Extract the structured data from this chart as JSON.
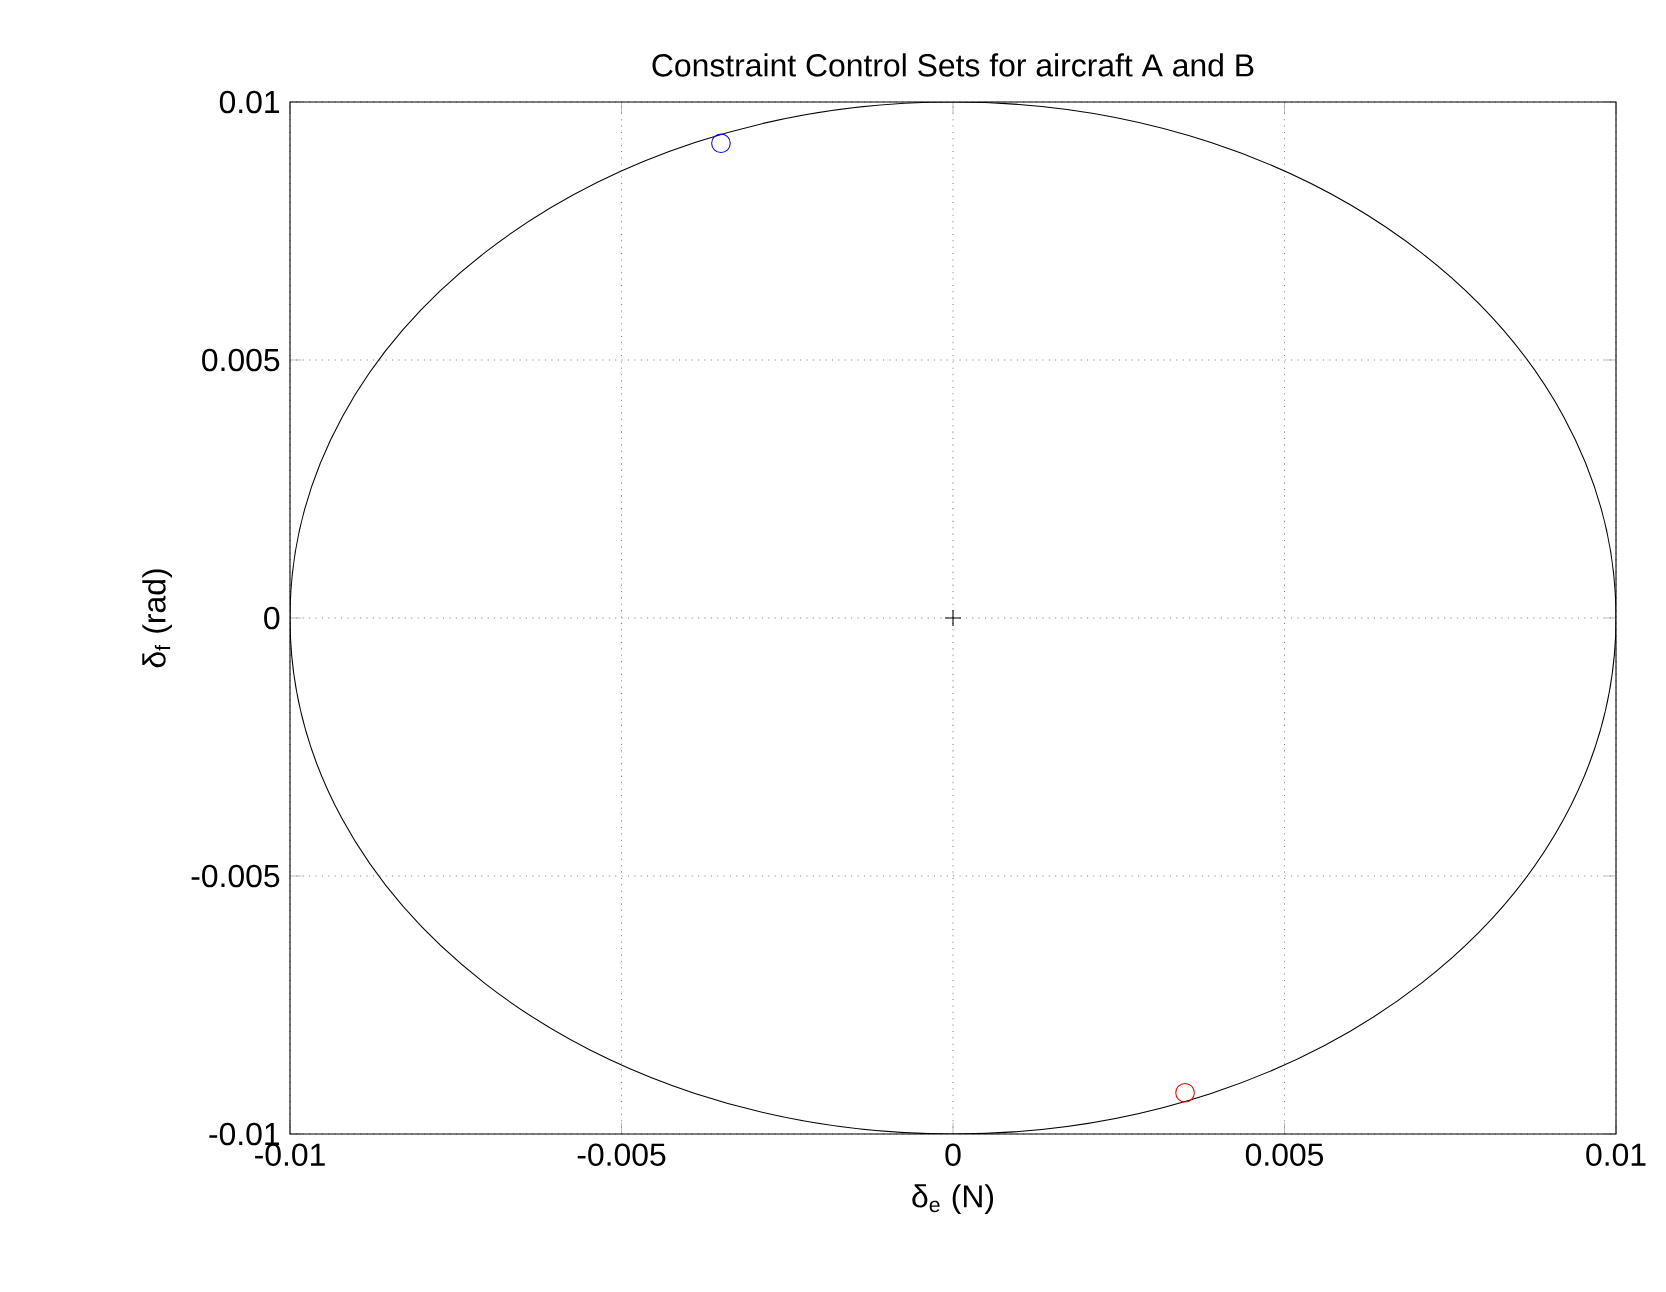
{
  "chart_data": {
    "title": "Constraint Control Sets for aircraft A and B",
    "xlabel": "δ$_{e}$ (N)",
    "ylabel": "δ$_{f}$ (rad)",
    "xlim": [
      -0.01,
      0.01
    ],
    "ylim": [
      -0.01,
      0.01
    ],
    "xticks": [
      {
        "value": -0.01,
        "label": "-0.01"
      },
      {
        "value": -0.005,
        "label": "-0.005"
      },
      0,
      0.005,
      0.01
    ],
    "yticks": [
      {
        "value": -0.01,
        "label": "-0.01"
      },
      {
        "value": -0.005,
        "label": "-0.005"
      },
      0,
      0.005,
      0.01
    ],
    "type": "scatter",
    "grid": true,
    "series": [
      {
        "color": "#000000",
        "marker": "cross",
        "x": [
          0
        ],
        "values": [
          0
        ]
      },
      {
        "color": "#0000ff",
        "marker": "circle",
        "x": [
          -0.0035
        ],
        "values": [
          0.0092
        ]
      },
      {
        "color": "#ff0000",
        "marker": "circle",
        "x": [
          0.0035
        ],
        "values": [
          -0.0092
        ]
      }
    ]
  }
}
